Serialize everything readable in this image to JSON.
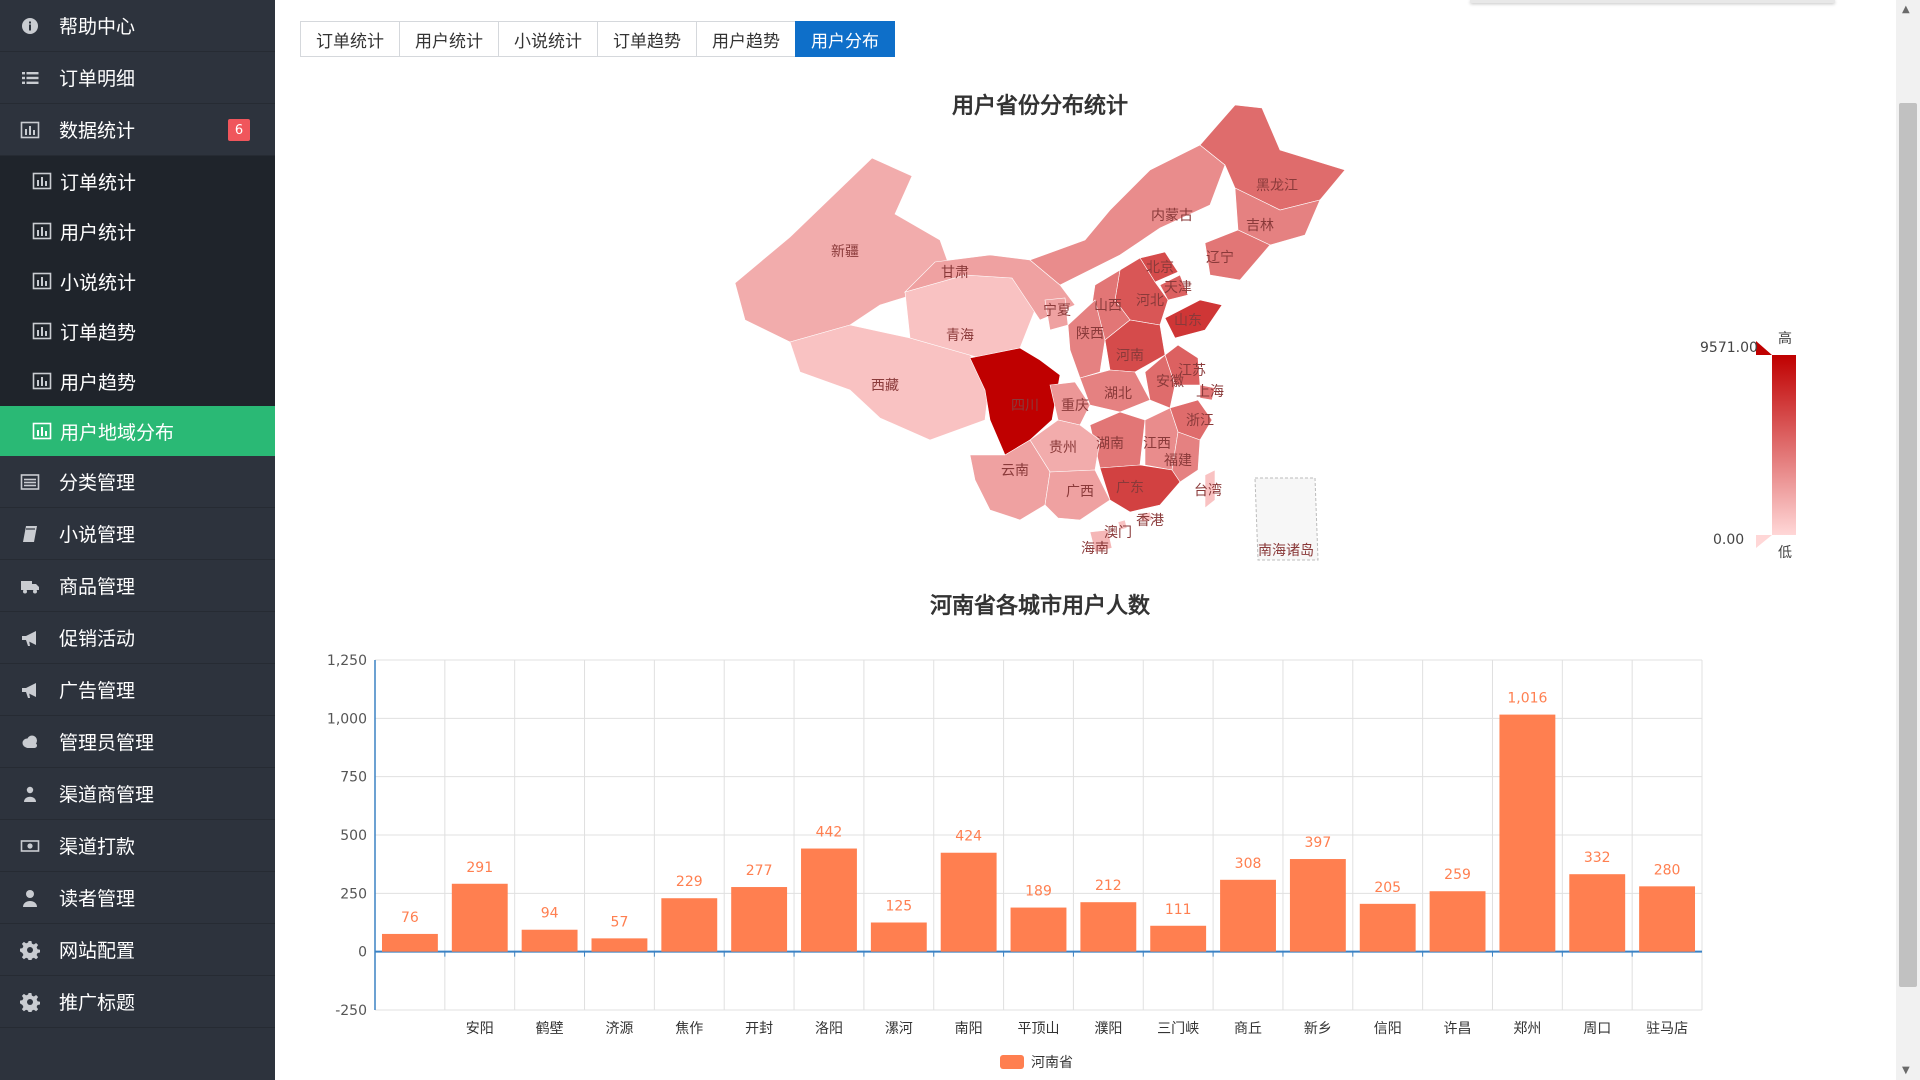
{
  "sidebar": {
    "items": [
      {
        "label": "帮助中心",
        "icon": "info-icon"
      },
      {
        "label": "订单明细",
        "icon": "list-icon"
      },
      {
        "label": "数据统计",
        "icon": "bar-chart-icon",
        "badge": "6"
      }
    ],
    "subitems": [
      {
        "label": "订单统计",
        "icon": "bar-chart-icon"
      },
      {
        "label": "用户统计",
        "icon": "bar-chart-icon"
      },
      {
        "label": "小说统计",
        "icon": "bar-chart-icon"
      },
      {
        "label": "订单趋势",
        "icon": "bar-chart-icon"
      },
      {
        "label": "用户趋势",
        "icon": "bar-chart-icon"
      },
      {
        "label": "用户地域分布",
        "icon": "bar-chart-icon",
        "active": true
      }
    ],
    "items_after": [
      {
        "label": "分类管理",
        "icon": "list-alt-icon"
      },
      {
        "label": "小说管理",
        "icon": "book-icon"
      },
      {
        "label": "商品管理",
        "icon": "truck-icon"
      },
      {
        "label": "促销活动",
        "icon": "bullhorn-icon"
      },
      {
        "label": "广告管理",
        "icon": "bullhorn-icon"
      },
      {
        "label": "管理员管理",
        "icon": "cloud-icon"
      },
      {
        "label": "渠道商管理",
        "icon": "user-group-icon"
      },
      {
        "label": "渠道打款",
        "icon": "money-icon"
      },
      {
        "label": "读者管理",
        "icon": "user-icon"
      },
      {
        "label": "网站配置",
        "icon": "gear-icon"
      },
      {
        "label": "推广标题",
        "icon": "gear-icon"
      }
    ]
  },
  "tabs": [
    "订单统计",
    "用户统计",
    "小说统计",
    "订单趋势",
    "用户趋势",
    "用户分布"
  ],
  "active_tab": "用户分布",
  "colors": {
    "sidebar_bg": "#2d333d",
    "active_green": "#2ab975",
    "tab_active": "#0e6fc9",
    "bar": "#ff7f50",
    "map_low": "#ffd7d7",
    "map_high": "#bf0000"
  },
  "chart_data": [
    {
      "type": "heatmap",
      "title": "用户省份分布统计",
      "visual_map": {
        "max_label": "9571.00",
        "min_label": "0.00",
        "high_text": "高",
        "low_text": "低",
        "max": 9571,
        "min": 0
      },
      "regions": [
        {
          "name": "新疆",
          "level": 0.2
        },
        {
          "name": "西藏",
          "level": 0.1
        },
        {
          "name": "青海",
          "level": 0.1
        },
        {
          "name": "甘肃",
          "level": 0.25
        },
        {
          "name": "内蒙古",
          "level": 0.35
        },
        {
          "name": "黑龙江",
          "level": 0.5
        },
        {
          "name": "吉林",
          "level": 0.4
        },
        {
          "name": "辽宁",
          "level": 0.45
        },
        {
          "name": "北京",
          "level": 0.65
        },
        {
          "name": "天津",
          "level": 0.55
        },
        {
          "name": "河北",
          "level": 0.6
        },
        {
          "name": "山西",
          "level": 0.45
        },
        {
          "name": "山东",
          "level": 0.75
        },
        {
          "name": "宁夏",
          "level": 0.25
        },
        {
          "name": "陕西",
          "level": 0.4
        },
        {
          "name": "河南",
          "level": 0.65
        },
        {
          "name": "江苏",
          "level": 0.55
        },
        {
          "name": "安徽",
          "level": 0.5
        },
        {
          "name": "上海",
          "level": 0.45
        },
        {
          "name": "湖北",
          "level": 0.4
        },
        {
          "name": "四川",
          "level": 1.0
        },
        {
          "name": "重庆",
          "level": 0.3
        },
        {
          "name": "浙江",
          "level": 0.5
        },
        {
          "name": "湖南",
          "level": 0.45
        },
        {
          "name": "江西",
          "level": 0.35
        },
        {
          "name": "贵州",
          "level": 0.2
        },
        {
          "name": "云南",
          "level": 0.25
        },
        {
          "name": "福建",
          "level": 0.4
        },
        {
          "name": "广西",
          "level": 0.25
        },
        {
          "name": "广东",
          "level": 0.7
        },
        {
          "name": "台湾",
          "level": 0.1
        },
        {
          "name": "香港",
          "level": 0.1
        },
        {
          "name": "澳门",
          "level": 0.1
        },
        {
          "name": "海南",
          "level": 0.15
        },
        {
          "name": "南海诸岛",
          "level": 0.0
        }
      ]
    },
    {
      "type": "bar",
      "title": "河南省各城市用户人数",
      "categories": [
        "",
        "安阳",
        "鹤壁",
        "济源",
        "焦作",
        "开封",
        "洛阳",
        "漯河",
        "南阳",
        "平顶山",
        "濮阳",
        "三门峡",
        "商丘",
        "新乡",
        "信阳",
        "许昌",
        "郑州",
        "周口",
        "驻马店"
      ],
      "series": [
        {
          "name": "河南省",
          "values": [
            76,
            291,
            94,
            57,
            229,
            277,
            442,
            125,
            424,
            189,
            212,
            111,
            308,
            397,
            205,
            259,
            1016,
            332,
            280
          ]
        }
      ],
      "value_labels": [
        "76",
        "291",
        "94",
        "57",
        "229",
        "277",
        "442",
        "125",
        "424",
        "189",
        "212",
        "111",
        "308",
        "397",
        "205",
        "259",
        "1,016",
        "332",
        "280"
      ],
      "ylim": [
        -250,
        1250
      ],
      "y_ticks": [
        -250,
        0,
        250,
        500,
        750,
        1000,
        1250
      ],
      "y_tick_labels": [
        "-250",
        "0",
        "250",
        "500",
        "750",
        "1,000",
        "1,250"
      ],
      "grid": true,
      "legend": "bottom-center"
    }
  ]
}
